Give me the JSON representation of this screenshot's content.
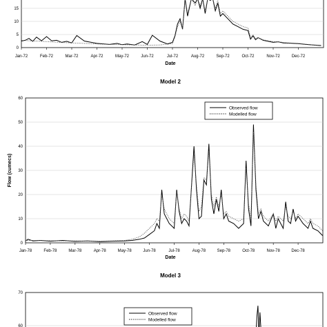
{
  "chart_data": [
    {
      "type": "line",
      "title": "",
      "xlabel": "Date",
      "ylabel": "",
      "ylim": [
        0,
        25
      ],
      "yticks_visible": [
        0,
        5,
        10,
        15
      ],
      "categories": [
        "Jan-72",
        "Feb-72",
        "Mar-72",
        "Apr-72",
        "May-72",
        "Jun-72",
        "Jul-72",
        "Aug-72",
        "Sep-72",
        "Oct-72",
        "Nov-72",
        "Dec-72"
      ],
      "series": [
        {
          "style": "solid",
          "x": [
            0,
            0.15,
            0.3,
            0.45,
            0.6,
            0.8,
            1.0,
            1.2,
            1.4,
            1.6,
            1.8,
            2.0,
            2.2,
            2.5,
            3.0,
            3.5,
            3.8,
            4.0,
            4.2,
            4.5,
            4.8,
            5.0,
            5.2,
            5.5,
            5.8,
            6.0,
            6.1,
            6.2,
            6.3,
            6.4,
            6.5,
            6.6,
            6.75,
            6.9,
            7.0,
            7.1,
            7.2,
            7.3,
            7.4,
            7.5,
            7.6,
            7.7,
            7.8,
            7.9,
            8.0,
            8.2,
            8.4,
            8.6,
            8.8,
            9.0,
            9.1,
            9.2,
            9.3,
            9.4,
            9.6,
            9.8,
            10.0,
            10.2,
            10.4,
            10.6,
            10.8,
            11.0,
            11.3,
            11.6,
            11.9
          ],
          "values": [
            2.5,
            2.8,
            3.5,
            2.4,
            4.0,
            2.6,
            4.2,
            2.6,
            2.8,
            2.0,
            2.4,
            1.8,
            4.6,
            2.5,
            1.6,
            1.2,
            1.6,
            1.1,
            1.4,
            1.0,
            2.3,
            1.2,
            4.7,
            2.5,
            1.4,
            2.0,
            4.5,
            9,
            11,
            7,
            22,
            12,
            23,
            17,
            25,
            15,
            21,
            13,
            25,
            18,
            21,
            14,
            17,
            12,
            13,
            11,
            9,
            8,
            7,
            6.5,
            3.2,
            4.5,
            3.0,
            3.8,
            2.8,
            2.4,
            2.0,
            2.2,
            1.8,
            1.7,
            1.6,
            1.5,
            1.2,
            1.0,
            0.8
          ]
        },
        {
          "style": "dotted",
          "x": [
            0,
            0.3,
            0.6,
            1.0,
            1.5,
            2.0,
            2.5,
            3.0,
            3.5,
            4.0,
            4.5,
            5.0,
            5.5,
            6.0,
            6.1,
            6.2,
            6.3,
            6.4,
            6.5,
            6.6,
            6.75,
            6.9,
            7.0,
            7.1,
            7.2,
            7.3,
            7.4,
            7.5,
            7.6,
            7.7,
            7.8,
            7.9,
            8.0,
            8.2,
            8.4,
            8.6,
            8.8,
            9.0,
            9.1,
            9.2,
            9.3,
            9.4,
            9.6,
            9.8,
            10.0,
            10.2,
            10.4,
            10.6,
            10.8,
            11.0,
            11.3,
            11.6,
            11.9
          ],
          "values": [
            2.8,
            2.6,
            2.5,
            2.3,
            2.0,
            1.8,
            1.6,
            1.4,
            1.2,
            1.1,
            1.0,
            0.9,
            1.0,
            1.5,
            4.0,
            8,
            10,
            7,
            20,
            13,
            22,
            16,
            24,
            16,
            20,
            14,
            23,
            19,
            20,
            15,
            18,
            13,
            14,
            12,
            10,
            9,
            8,
            7.5,
            4.0,
            4.8,
            3.5,
            3.8,
            3.0,
            2.6,
            2.3,
            2.2,
            2.0,
            1.8,
            1.7,
            1.6,
            1.3,
            1.0,
            0.9
          ]
        }
      ]
    },
    {
      "type": "line",
      "title": "Model 2",
      "xlabel": "Date",
      "ylabel": "Flow (cumecs)",
      "ylim": [
        0,
        60
      ],
      "yticks": [
        0,
        10,
        20,
        30,
        40,
        50,
        60
      ],
      "legend_position": "top-right",
      "categories": [
        "Jan-78",
        "Feb-78",
        "Mar-78",
        "Apr-78",
        "May-78",
        "Jun-78",
        "Jul-78",
        "Aug-78",
        "Sep-78",
        "Oct-78",
        "Nov-78",
        "Dec-78"
      ],
      "series": [
        {
          "name": "Observed flow",
          "style": "solid",
          "x": [
            0,
            0.1,
            0.3,
            0.6,
            1.0,
            1.5,
            2.0,
            2.5,
            3.0,
            3.5,
            4.0,
            4.3,
            4.6,
            4.8,
            5.0,
            5.2,
            5.3,
            5.4,
            5.5,
            5.6,
            5.8,
            6.0,
            6.1,
            6.2,
            6.3,
            6.4,
            6.5,
            6.6,
            6.8,
            6.9,
            7.0,
            7.1,
            7.2,
            7.3,
            7.4,
            7.5,
            7.6,
            7.7,
            7.8,
            7.9,
            8.0,
            8.1,
            8.2,
            8.4,
            8.6,
            8.8,
            8.9,
            9.0,
            9.1,
            9.2,
            9.3,
            9.4,
            9.5,
            9.6,
            9.8,
            10.0,
            10.1,
            10.2,
            10.3,
            10.4,
            10.5,
            10.6,
            10.7,
            10.8,
            10.9,
            11.0,
            11.2,
            11.4,
            11.5,
            11.6,
            11.8,
            11.99
          ],
          "values": [
            0.8,
            1.5,
            0.8,
            1.0,
            0.7,
            1.0,
            0.6,
            0.8,
            0.5,
            0.7,
            0.8,
            1.0,
            1.5,
            2.0,
            3.5,
            5.0,
            8,
            6,
            22,
            12,
            8,
            6,
            22,
            13,
            8,
            10,
            9,
            7,
            40,
            22,
            10,
            11,
            26,
            24,
            41,
            18,
            12,
            18,
            13,
            22,
            10,
            12,
            9,
            8,
            6,
            8,
            34,
            14,
            7,
            49,
            22,
            10,
            13,
            9,
            7,
            12,
            6,
            10,
            8,
            6,
            17,
            9,
            8,
            14,
            9,
            11,
            8,
            6,
            9,
            6,
            5,
            3
          ]
        },
        {
          "name": "Modelled flow",
          "style": "dotted",
          "x": [
            0,
            0.5,
            1.0,
            1.5,
            2.0,
            2.5,
            3.0,
            3.5,
            4.0,
            4.3,
            4.6,
            4.8,
            5.0,
            5.2,
            5.3,
            5.4,
            5.5,
            5.6,
            5.8,
            6.0,
            6.1,
            6.2,
            6.3,
            6.4,
            6.5,
            6.6,
            6.8,
            6.9,
            7.0,
            7.1,
            7.2,
            7.3,
            7.4,
            7.5,
            7.6,
            7.7,
            7.8,
            7.9,
            8.0,
            8.1,
            8.2,
            8.4,
            8.6,
            8.8,
            8.9,
            9.0,
            9.1,
            9.2,
            9.3,
            9.4,
            9.5,
            9.6,
            9.8,
            10.0,
            10.1,
            10.2,
            10.3,
            10.4,
            10.5,
            10.6,
            10.7,
            10.8,
            10.9,
            11.0,
            11.2,
            11.4,
            11.5,
            11.6,
            11.8,
            11.99
          ],
          "values": [
            1.0,
            1.0,
            0.9,
            0.8,
            0.8,
            0.7,
            0.7,
            0.8,
            1.0,
            1.5,
            2.5,
            4,
            6,
            8,
            10,
            9,
            20,
            14,
            10,
            8,
            21,
            14,
            10,
            12,
            11,
            9,
            37,
            24,
            13,
            15,
            27,
            26,
            38,
            20,
            15,
            19,
            15,
            20,
            12,
            13,
            11,
            10,
            9,
            10,
            31,
            16,
            10,
            46,
            24,
            12,
            14,
            11,
            9,
            12,
            9,
            11,
            10,
            9,
            15,
            11,
            10,
            13,
            10,
            12,
            10,
            8,
            10,
            8,
            7,
            5
          ]
        }
      ]
    },
    {
      "type": "line",
      "title": "Model 3",
      "xlabel": "",
      "ylabel": "",
      "ylim": [
        0,
        70
      ],
      "yticks_visible": [
        60,
        70
      ],
      "legend_position": "top-right",
      "series": [
        {
          "name": "Observed flow",
          "style": "solid",
          "x": [
            0,
            9.0,
            9.3,
            9.34,
            9.38,
            9.42,
            9.46,
            9.5,
            9.55
          ],
          "values": [
            0,
            0,
            45,
            63,
            66,
            52,
            64,
            59,
            40
          ]
        },
        {
          "name": "Modelled flow",
          "style": "dotted",
          "x": [],
          "values": []
        }
      ]
    }
  ]
}
